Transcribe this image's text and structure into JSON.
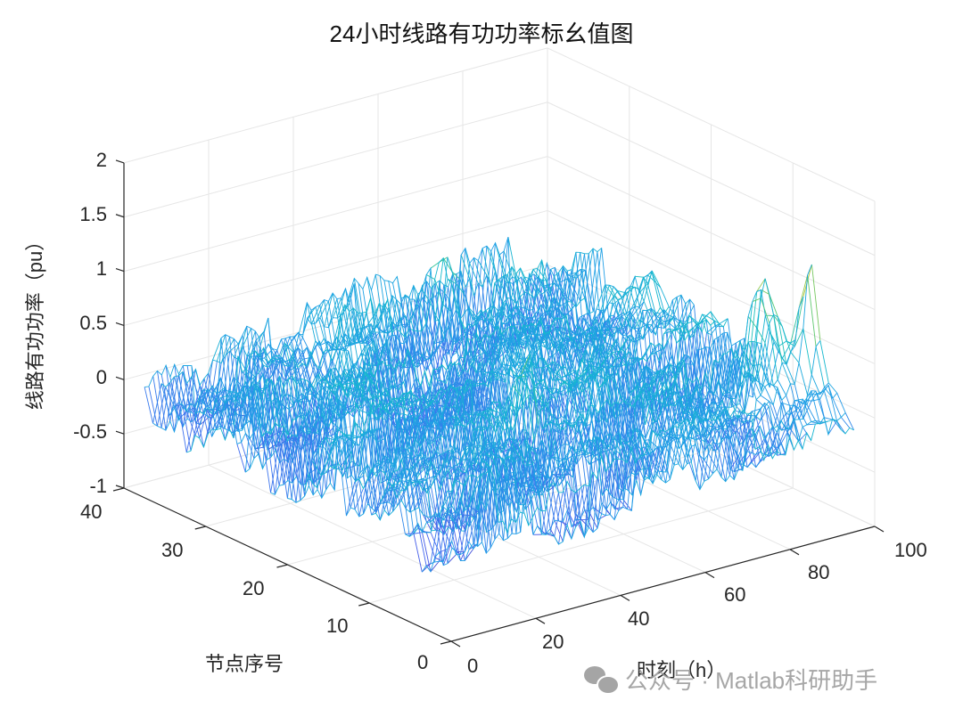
{
  "chart_data": {
    "type": "surface-mesh",
    "title": "24小时线路有功功率标幺值图",
    "xlabel": "时刻（h）",
    "ylabel": "节点序号",
    "zlabel": "线路有功功率（pu）",
    "x_axis": {
      "label": "时刻（h）",
      "range": [
        0,
        100
      ],
      "ticks": [
        0,
        20,
        40,
        60,
        80,
        100
      ]
    },
    "y_axis": {
      "label": "节点序号",
      "range": [
        0,
        40
      ],
      "ticks": [
        0,
        10,
        20,
        30,
        40
      ]
    },
    "z_axis": {
      "label": "线路有功功率（pu）",
      "range": [
        -1,
        2
      ],
      "ticks": [
        -1,
        -0.5,
        0,
        0.5,
        1,
        1.5,
        2
      ]
    },
    "grid": true,
    "colormap": "parula",
    "view": "3D default (az -37.5, el 30)",
    "data_summary": {
      "approx_z_min": -0.75,
      "approx_z_max": 1.45,
      "peaks": [
        {
          "t": 95,
          "node": 5,
          "z": 1.45
        },
        {
          "t": 90,
          "node": 8,
          "z": 1.25
        },
        {
          "t": 35,
          "node": 8,
          "z": 0.9
        },
        {
          "t": 60,
          "node": 30,
          "z": 1.3
        }
      ],
      "note": "Mesh of line active power per-unit values across ~37 line/node indices and ~96 time steps; most values between -0.6 and 0.6."
    }
  },
  "figure": {
    "title": "24小时线路有功功率标幺值图",
    "z_tick_labels": [
      "2",
      "1.5",
      "1",
      "0.5",
      "0",
      "-0.5",
      "-1"
    ],
    "node_tick_labels": [
      "40",
      "30",
      "20",
      "10",
      "0"
    ],
    "time_tick_labels": [
      "0",
      "20",
      "40",
      "60",
      "80",
      "100"
    ],
    "zlabel": "线路有功功率（pu）",
    "node_label": "节点序号",
    "time_label": "时刻（h）"
  },
  "watermark": {
    "text": "公众号 · Matlab科研助手",
    "icon": "wechat-icon"
  },
  "colors": {
    "grid": "#e6e6e6",
    "axis": "#262626",
    "colormap_low": "#3e26a8",
    "colormap_mid": "#1fb8c9",
    "colormap_high": "#f9fb15"
  }
}
